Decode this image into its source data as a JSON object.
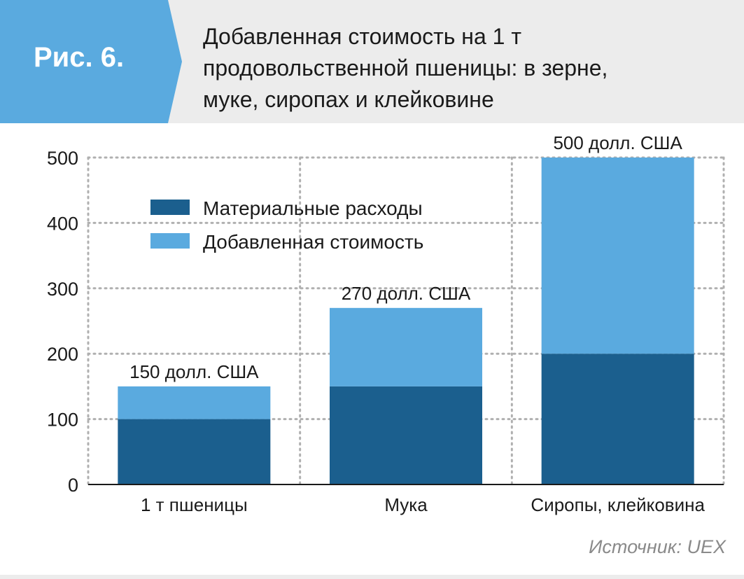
{
  "figure_label": "Рис. 6.",
  "title_lines": [
    "Добавленная стоимость на 1 т",
    "продовольственной пшеницы: в зерне,",
    "муке, сиропах и клейковине"
  ],
  "source": "Источник: UEX",
  "colors": {
    "material": "#1b5f8e",
    "added": "#5aaadf",
    "header_bg": "#ececec",
    "tab_bg": "#5aaadf",
    "grid": "#b0b0b0",
    "axis": "#1a1a1a"
  },
  "chart_data": {
    "type": "bar",
    "stacked": true,
    "title": "Добавленная стоимость на 1 т продовольственной пшеницы: в зерне, муке, сиропах и клейковине",
    "categories": [
      "1 т пшеницы",
      "Мука",
      "Сиропы, клейковина"
    ],
    "series": [
      {
        "name": "Материальные расходы",
        "values": [
          100,
          150,
          200
        ]
      },
      {
        "name": "Добавленная стоимость",
        "values": [
          50,
          120,
          300
        ]
      }
    ],
    "totals_labels": [
      "150 долл. США",
      "270 долл. США",
      "500 долл. США"
    ],
    "ylim": [
      0,
      500
    ],
    "yticks": [
      0,
      100,
      200,
      300,
      400,
      500
    ],
    "grid": "dotted",
    "legend_position": "top-left"
  }
}
